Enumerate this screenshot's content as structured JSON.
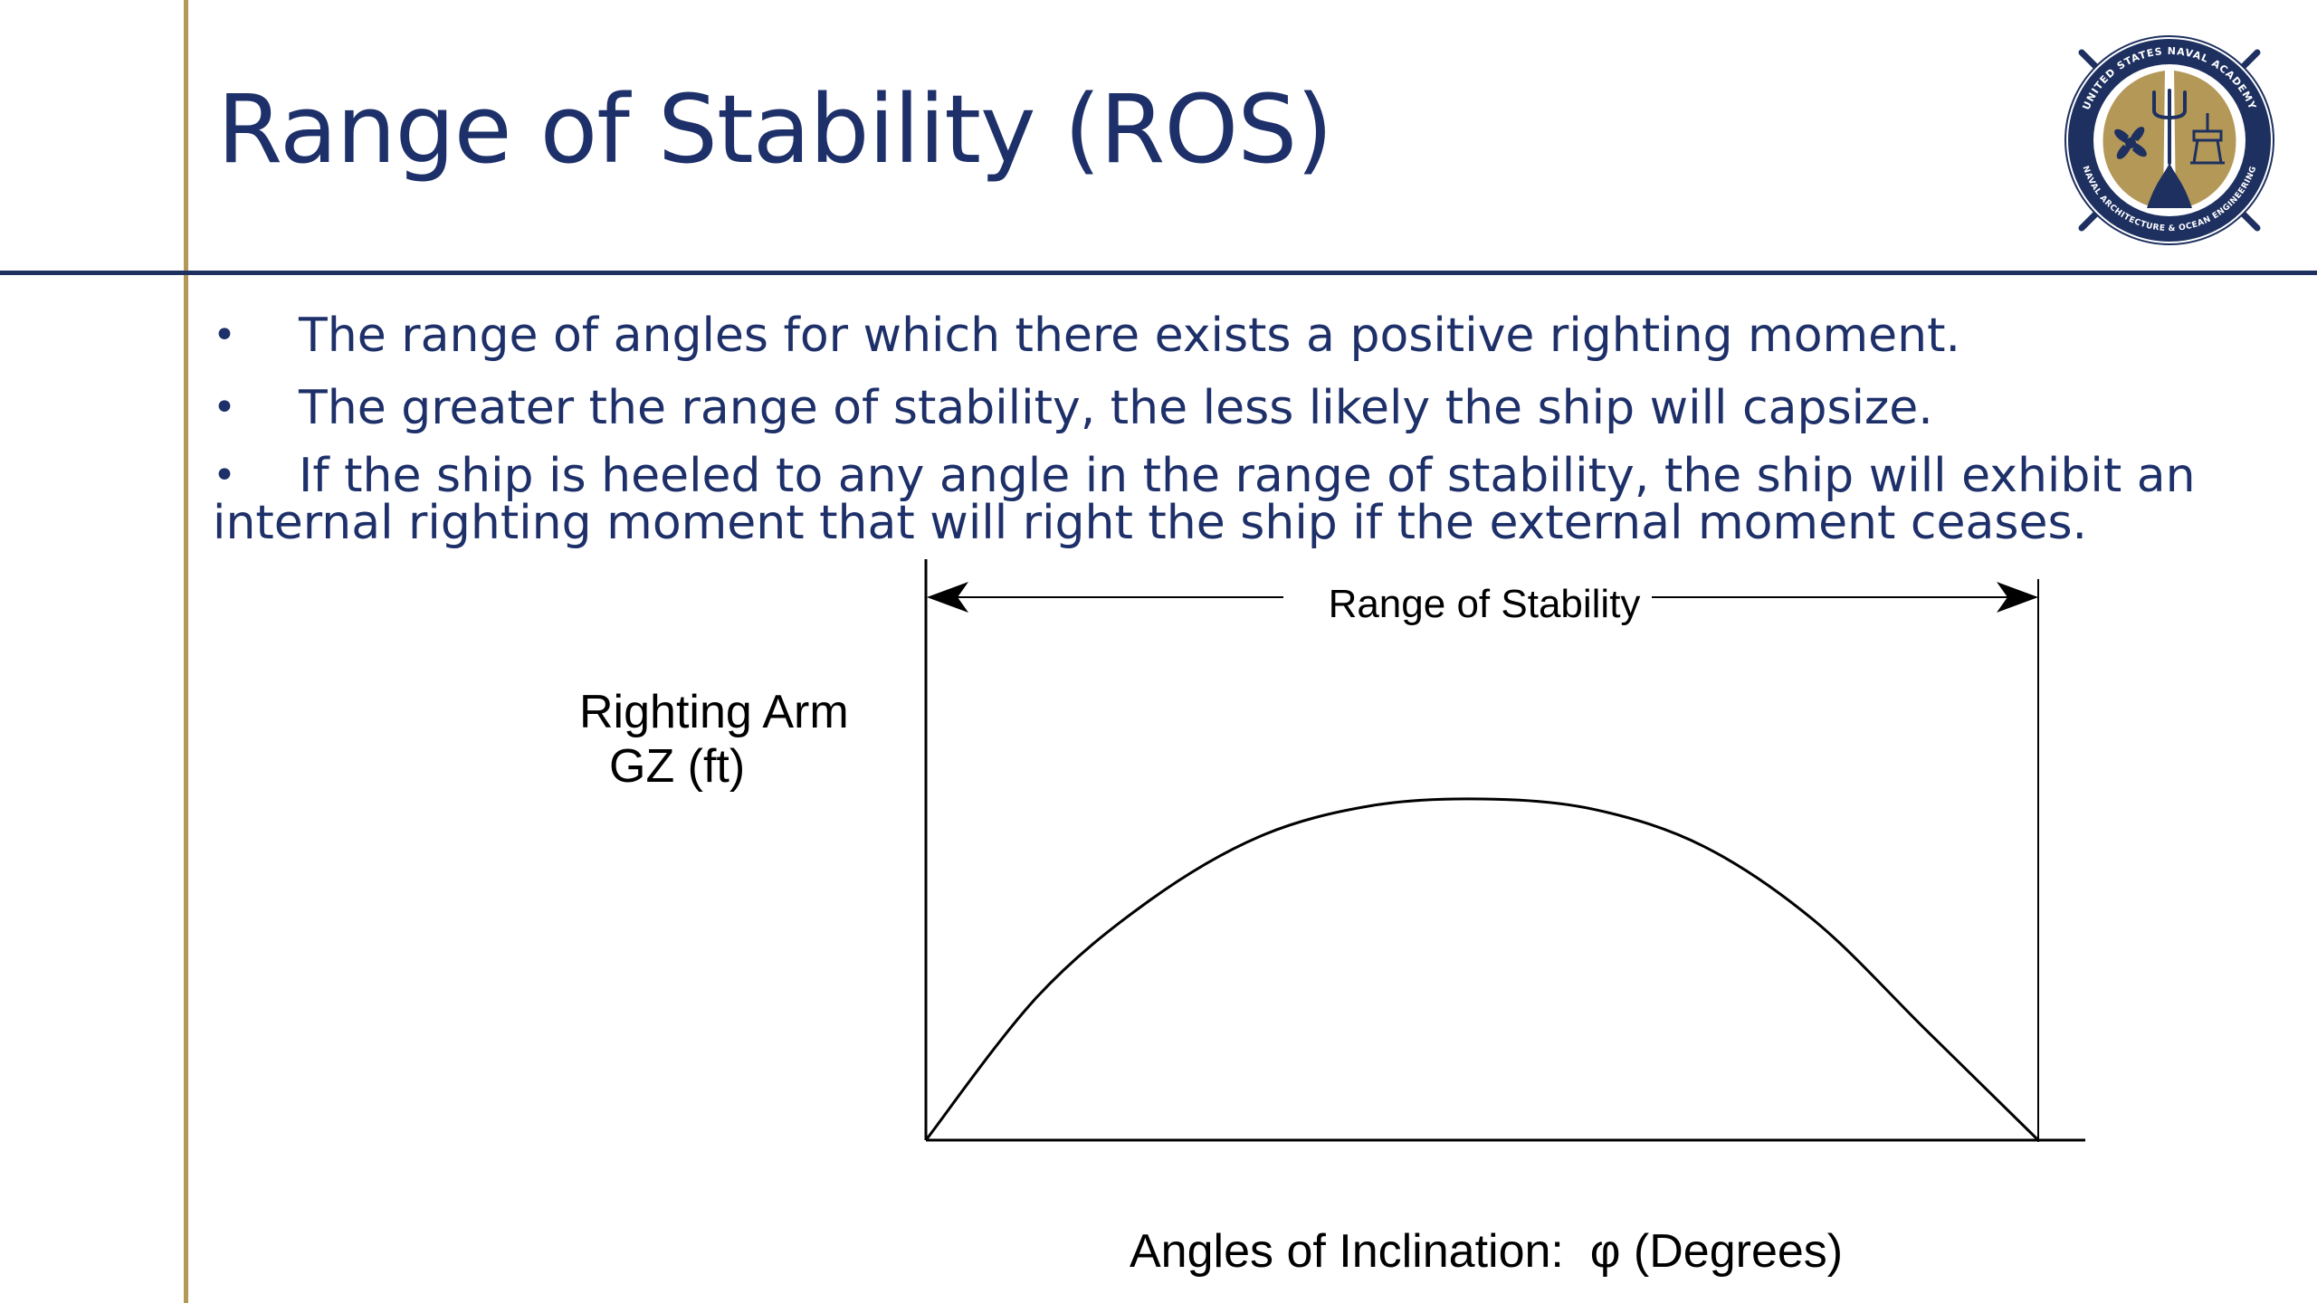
{
  "slide": {
    "title": "Range of Stability (ROS)",
    "logo": {
      "icon": "usna-naval-architecture-seal-icon",
      "ring_top_text": "UNITED STATES NAVAL ACADEMY",
      "ring_bottom_text": "NAVAL ARCHITECTURE & OCEAN ENGINEERING",
      "colors": {
        "navy": "#1e3060",
        "gold": "#b39858"
      }
    },
    "bullets": [
      {
        "marker": "•",
        "text": "The range of angles for which there exists a positive righting moment."
      },
      {
        "marker": "•",
        "text": "The greater the range of stability, the less likely the ship will capsize."
      },
      {
        "marker": "•",
        "text": "If the ship is heeled to any angle in the range of stability, the ship will exhibit an internal righting moment that will right the ship if the external moment ceases."
      }
    ],
    "colors": {
      "title": "#1e3069",
      "accent_gold": "#b39858",
      "accent_navy": "#1e3060"
    }
  },
  "chart_data": {
    "type": "line",
    "title": "",
    "xlabel": "Angles of Inclination:  φ (Degrees)",
    "ylabel": "Righting Arm\nGZ (ft)",
    "ylabel_lines": [
      "Righting Arm",
      "GZ (ft)"
    ],
    "annotations": [
      {
        "text": "Range of Stability",
        "type": "double-arrow-span"
      }
    ],
    "grid": false,
    "legend": "none",
    "series": [
      {
        "values_relative": [
          0,
          0.42,
          0.7,
          0.89,
          0.98,
          1.0,
          0.97,
          0.86,
          0.64,
          0.32,
          0
        ]
      }
    ]
  }
}
